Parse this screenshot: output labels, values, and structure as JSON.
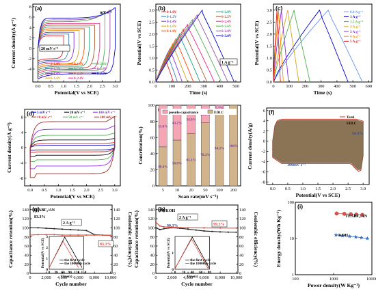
{
  "figure": {
    "panels": [
      {
        "label": "(a)",
        "ylabel": "Current density(A g⁻¹)",
        "xlabel": "Potential(V vs SCE)"
      },
      {
        "label": "(b)",
        "ylabel": "Potential(V vs SCE)",
        "xlabel": "Time (s)"
      },
      {
        "label": "(c)",
        "ylabel": "Potential(V vs SCE)",
        "xlabel": "Time (s)"
      },
      {
        "label": "(d)",
        "ylabel": "Current density(A g⁻¹)",
        "xlabel": "Potential(V vs SCE)"
      },
      {
        "label": "(e)",
        "ylabel": "Contribution(%)",
        "xlabel": "Scan rate(mV s⁻¹)"
      },
      {
        "label": "(f)",
        "ylabel": "Current density(A/g)",
        "xlabel": "Potential(V vs SCE)"
      },
      {
        "label": "(g)",
        "ylabel": "Capacitance retention(%)",
        "ylabel2": "Coulombic efficiency(%)",
        "xlabel": "Cycle number"
      },
      {
        "label": "(h)",
        "ylabel": "Capacitance retention(%)",
        "ylabel2": "Coulombic efficiency(%)",
        "xlabel": "Cycle number"
      },
      {
        "label": "(i)",
        "ylabel": "Energy density(Wh Kg⁻¹)",
        "xlabel": "Power density(W Kg⁻¹)"
      }
    ]
  },
  "chart_data": [
    {
      "panel": "(a)",
      "type": "line",
      "xlim": [
        -0.2,
        3.2
      ],
      "ylim": [
        -6.5,
        8.5
      ],
      "xticks": [
        "0.0",
        "0.5",
        "1.0",
        "1.5",
        "2.0",
        "2.5",
        "3.0"
      ],
      "yticks": [
        "-4",
        "-2",
        "0",
        "2",
        "4",
        "6",
        "8"
      ],
      "annotations": [
        "mV s⁻¹",
        "20 mV s⁻¹"
      ],
      "series": [
        {
          "name": "0-1.0V",
          "color": "#e41a1c",
          "vmax": 1.0
        },
        {
          "name": "0-1.2V",
          "color": "#377eb8",
          "vmax": 1.2
        },
        {
          "name": "0-1.4V",
          "color": "#8a2be2",
          "vmax": 1.4
        },
        {
          "name": "0-1.6V",
          "color": "#d4a017",
          "vmax": 1.6
        },
        {
          "name": "0-1.8V",
          "color": "#ff4500",
          "vmax": 1.8
        },
        {
          "name": "0-2.0V",
          "color": "#1b9e77",
          "vmax": 2.0
        },
        {
          "name": "0-2.2V",
          "color": "#a65628",
          "vmax": 2.2
        },
        {
          "name": "0-2.4V",
          "color": "#e7298a",
          "vmax": 2.4
        },
        {
          "name": "0-2.6V",
          "color": "#4daf4a",
          "vmax": 2.6
        },
        {
          "name": "0-2.8V",
          "color": "#984ea3",
          "vmax": 2.8
        },
        {
          "name": "0-3.0V",
          "color": "#0000cd",
          "vmax": 3.0
        }
      ]
    },
    {
      "panel": "(b)",
      "type": "line",
      "xlim": [
        0,
        530
      ],
      "ylim": [
        0,
        3.25
      ],
      "xticks": [
        "0",
        "100",
        "200",
        "300",
        "400",
        "500"
      ],
      "yticks": [
        "0.0",
        "0.5",
        "1.0",
        "1.5",
        "2.0",
        "2.5",
        "3.0"
      ],
      "annotations": [
        "1 A g⁻¹"
      ],
      "series": [
        {
          "name": "0-1.0V",
          "color": "#e41a1c",
          "vmax": 1.0,
          "t_peak": 58,
          "t_end": 110
        },
        {
          "name": "0-1.2V",
          "color": "#377eb8",
          "vmax": 1.2,
          "t_peak": 72,
          "t_end": 135
        },
        {
          "name": "0-1.4V",
          "color": "#8a2be2",
          "vmax": 1.4,
          "t_peak": 88,
          "t_end": 165
        },
        {
          "name": "0-1.6V",
          "color": "#d4a017",
          "vmax": 1.6,
          "t_peak": 105,
          "t_end": 198
        },
        {
          "name": "0-1.8V",
          "color": "#ff4500",
          "vmax": 1.8,
          "t_peak": 125,
          "t_end": 235
        },
        {
          "name": "0-2.0V",
          "color": "#1b9e77",
          "vmax": 2.0,
          "t_peak": 148,
          "t_end": 276
        },
        {
          "name": "0-2.2V",
          "color": "#a65628",
          "vmax": 2.2,
          "t_peak": 172,
          "t_end": 320
        },
        {
          "name": "0-2.4V",
          "color": "#e7298a",
          "vmax": 2.4,
          "t_peak": 198,
          "t_end": 366
        },
        {
          "name": "0-2.6V",
          "color": "#4daf4a",
          "vmax": 2.6,
          "t_peak": 228,
          "t_end": 410
        },
        {
          "name": "0-2.8V",
          "color": "#984ea3",
          "vmax": 2.8,
          "t_peak": 258,
          "t_end": 450
        },
        {
          "name": "0-3.0V",
          "color": "#0000cd",
          "vmax": 3.0,
          "t_peak": 290,
          "t_end": 490
        }
      ]
    },
    {
      "panel": "(c)",
      "type": "line",
      "xlim": [
        0,
        620
      ],
      "ylim": [
        0,
        3.25
      ],
      "xticks": [
        "0",
        "100",
        "200",
        "300",
        "400",
        "500",
        "600"
      ],
      "yticks": [
        "0.0",
        "0.5",
        "1.0",
        "1.5",
        "2.0",
        "2.5",
        "3.0"
      ],
      "series": [
        {
          "name": "0.8 A g⁻¹",
          "color": "#6495ed",
          "t_peak": 345,
          "t_end": 560
        },
        {
          "name": "1 A g⁻¹",
          "color": "#0000cd",
          "t_peak": 290,
          "t_end": 470
        },
        {
          "name": "1.5 A g⁻¹",
          "color": "#4daf4a",
          "t_peak": 130,
          "t_end": 230
        },
        {
          "name": "2 A g⁻¹",
          "color": "#d4a017",
          "t_peak": 90,
          "t_end": 160
        },
        {
          "name": "3 A g⁻¹",
          "color": "#8a2be2",
          "t_peak": 50,
          "t_end": 95
        },
        {
          "name": "4 A g⁻¹",
          "color": "#ff8c00",
          "t_peak": 32,
          "t_end": 62
        },
        {
          "name": "5 A g⁻¹",
          "color": "#e41a1c",
          "t_peak": 22,
          "t_end": 44
        }
      ]
    },
    {
      "panel": "(d)",
      "type": "line",
      "xlim": [
        -0.2,
        3.2
      ],
      "ylim": [
        -10,
        10
      ],
      "xticks": [
        "0.0",
        "0.5",
        "1.0",
        "1.5",
        "2.0",
        "2.5",
        "3.0"
      ],
      "yticks": [
        "-8",
        "-4",
        "0",
        "4",
        "8"
      ],
      "series": [
        {
          "name": "5 mV s⁻¹",
          "color": "#0000cd",
          "amp": 0.6
        },
        {
          "name": "10 mV s⁻¹",
          "color": "#e41a1c",
          "amp": 1.1
        },
        {
          "name": "20 mV s⁻¹",
          "color": "#000000",
          "amp": 2.0
        },
        {
          "name": "50 mV s⁻¹",
          "color": "#4daf4a",
          "amp": 3.2
        },
        {
          "name": "100 mV s⁻¹",
          "color": "#8a2be2",
          "amp": 4.8
        },
        {
          "name": "200 mV s⁻¹",
          "color": "#a52a2a",
          "amp": 6.8
        }
      ]
    },
    {
      "panel": "(e)",
      "type": "bar",
      "categories": [
        "5",
        "10",
        "20",
        "50",
        "100",
        "200"
      ],
      "ylim": [
        0,
        100
      ],
      "yticks": [
        "0",
        "20",
        "40",
        "60",
        "80",
        "100"
      ],
      "series": [
        {
          "name": "EDLC",
          "color": "#d2b48c",
          "values": [
            48.4,
            56.8,
            65.1,
            78.2,
            94.3,
            100
          ]
        },
        {
          "name": "pseudo-capacitance",
          "color": "#f4a6b4",
          "values": [
            51.6,
            43.2,
            34.9,
            21.8,
            5.7,
            0
          ]
        }
      ],
      "labels_edlc": [
        "48.4%",
        "56.8%",
        "65.1%",
        "78.2%",
        "94.3%",
        "100%"
      ],
      "labels_pseudo": [
        "51.6%",
        "43.2%",
        "34.9%",
        "21.8%",
        "5.7%",
        ""
      ]
    },
    {
      "panel": "(f)",
      "type": "area",
      "xlim": [
        -0.2,
        3.2
      ],
      "ylim": [
        -8.5,
        6.5
      ],
      "xticks": [
        "0.0",
        "0.5",
        "1.0",
        "1.5",
        "2.0",
        "2.5",
        "3.0"
      ],
      "yticks": [
        "-8",
        "-6",
        "-4",
        "-2",
        "0",
        "2",
        "4",
        "6"
      ],
      "annotations": [
        "94.3%",
        "100mV s⁻¹"
      ],
      "series": [
        {
          "name": "Total",
          "color": "#c0392b"
        },
        {
          "name": "EDLC",
          "color": "#8b7355"
        }
      ]
    },
    {
      "panel": "(g)",
      "type": "scatter",
      "xlim": [
        0,
        10200
      ],
      "ylim": [
        0,
        150
      ],
      "ylim2": [
        0,
        150
      ],
      "xticks": [
        "0",
        "2,000",
        "4,000",
        "6,000",
        "8,000",
        "10,000"
      ],
      "yticks": [
        "0",
        "20",
        "40",
        "60",
        "80",
        "100",
        "120",
        "140"
      ],
      "annotations": [
        "TEABF₄/AN",
        "83.3%",
        "2 A g⁻¹",
        "83.3%"
      ],
      "series": [
        {
          "name": "Capacitance retention",
          "color": "#222222",
          "points": [
            [
              0,
              100
            ],
            [
              1000,
              100
            ],
            [
              2000,
              99
            ],
            [
              3000,
              98
            ],
            [
              4000,
              97
            ],
            [
              5000,
              96
            ],
            [
              6000,
              95
            ],
            [
              7000,
              94
            ],
            [
              8000,
              85
            ],
            [
              9000,
              84
            ],
            [
              10000,
              83.3
            ]
          ]
        },
        {
          "name": "Coulombic efficiency",
          "color": "#e74c3c",
          "points": [
            [
              0,
              84
            ],
            [
              1000,
              85
            ],
            [
              2000,
              85
            ],
            [
              3000,
              85
            ],
            [
              4000,
              84
            ],
            [
              5000,
              84
            ],
            [
              6000,
              84
            ],
            [
              7000,
              84
            ],
            [
              8000,
              84
            ],
            [
              9000,
              84
            ],
            [
              10000,
              83.3
            ]
          ]
        }
      ],
      "inset": {
        "ylabel": "Potential(V vs SCE)",
        "xlabel": "Time(s)",
        "xticks": [
          "0",
          "30",
          "60",
          "90",
          "120",
          "150"
        ],
        "yticks": [
          "0",
          "1",
          "2",
          "3"
        ],
        "legend": [
          "the first cycle",
          "the 10000th cycle"
        ]
      }
    },
    {
      "panel": "(h)",
      "type": "scatter",
      "xlim": [
        0,
        10200
      ],
      "ylim": [
        0,
        150
      ],
      "ylim2": [
        0,
        150
      ],
      "xticks": [
        "0",
        "2,000",
        "4,000",
        "6,000",
        "8,000",
        "10,000"
      ],
      "yticks": [
        "0",
        "20",
        "40",
        "60",
        "80",
        "100",
        "120",
        "140"
      ],
      "annotations": [
        "6M KOH",
        "2 A g⁻¹",
        "99.3%",
        "90.3%"
      ],
      "series": [
        {
          "name": "Capacitance retention",
          "color": "#222222",
          "points": [
            [
              0,
              100
            ],
            [
              500,
              96
            ],
            [
              1000,
              98
            ],
            [
              2000,
              100
            ],
            [
              3000,
              99
            ],
            [
              4000,
              97
            ],
            [
              5000,
              95
            ],
            [
              6000,
              93
            ],
            [
              7000,
              92
            ],
            [
              8000,
              91
            ],
            [
              9000,
              90.5
            ],
            [
              10000,
              90.3
            ]
          ]
        },
        {
          "name": "Coulombic efficiency",
          "color": "#e74c3c",
          "points": [
            [
              0,
              112
            ],
            [
              500,
              104
            ],
            [
              1000,
              102
            ],
            [
              2000,
              101
            ],
            [
              4000,
              100
            ],
            [
              6000,
              99.8
            ],
            [
              8000,
              99.5
            ],
            [
              10000,
              99.3
            ]
          ]
        }
      ],
      "inset": {
        "ylabel": "Potential(V vs SCE)",
        "xlabel": "Time(s)",
        "xticks": [
          "0",
          "20",
          "40",
          "60",
          "80"
        ],
        "yticks": [
          "0",
          "1"
        ],
        "legend": [
          "the first cycle",
          "the 10000th cycle"
        ]
      }
    },
    {
      "panel": "(i)",
      "type": "scatter",
      "xscale": "log",
      "yscale": "log",
      "xlim": [
        100,
        10000
      ],
      "ylim": [
        1,
        100
      ],
      "xticks": [
        "100",
        "1000",
        "10000"
      ],
      "yticks": [
        "1",
        "10",
        "100"
      ],
      "series": [
        {
          "name": "TEABF₄/AN",
          "color": "#d9534f",
          "points": [
            [
              1200,
              49
            ],
            [
              1900,
              48
            ],
            [
              2800,
              47
            ],
            [
              3900,
              46
            ],
            [
              5600,
              45
            ]
          ]
        },
        {
          "name": "KOH",
          "color": "#3a72c4",
          "points": [
            [
              1150,
              12.5
            ],
            [
              1700,
              12.0
            ],
            [
              2600,
              11.5
            ],
            [
              3800,
              11.0
            ],
            [
              5300,
              10.5
            ],
            [
              7600,
              10.0
            ]
          ]
        }
      ]
    }
  ]
}
